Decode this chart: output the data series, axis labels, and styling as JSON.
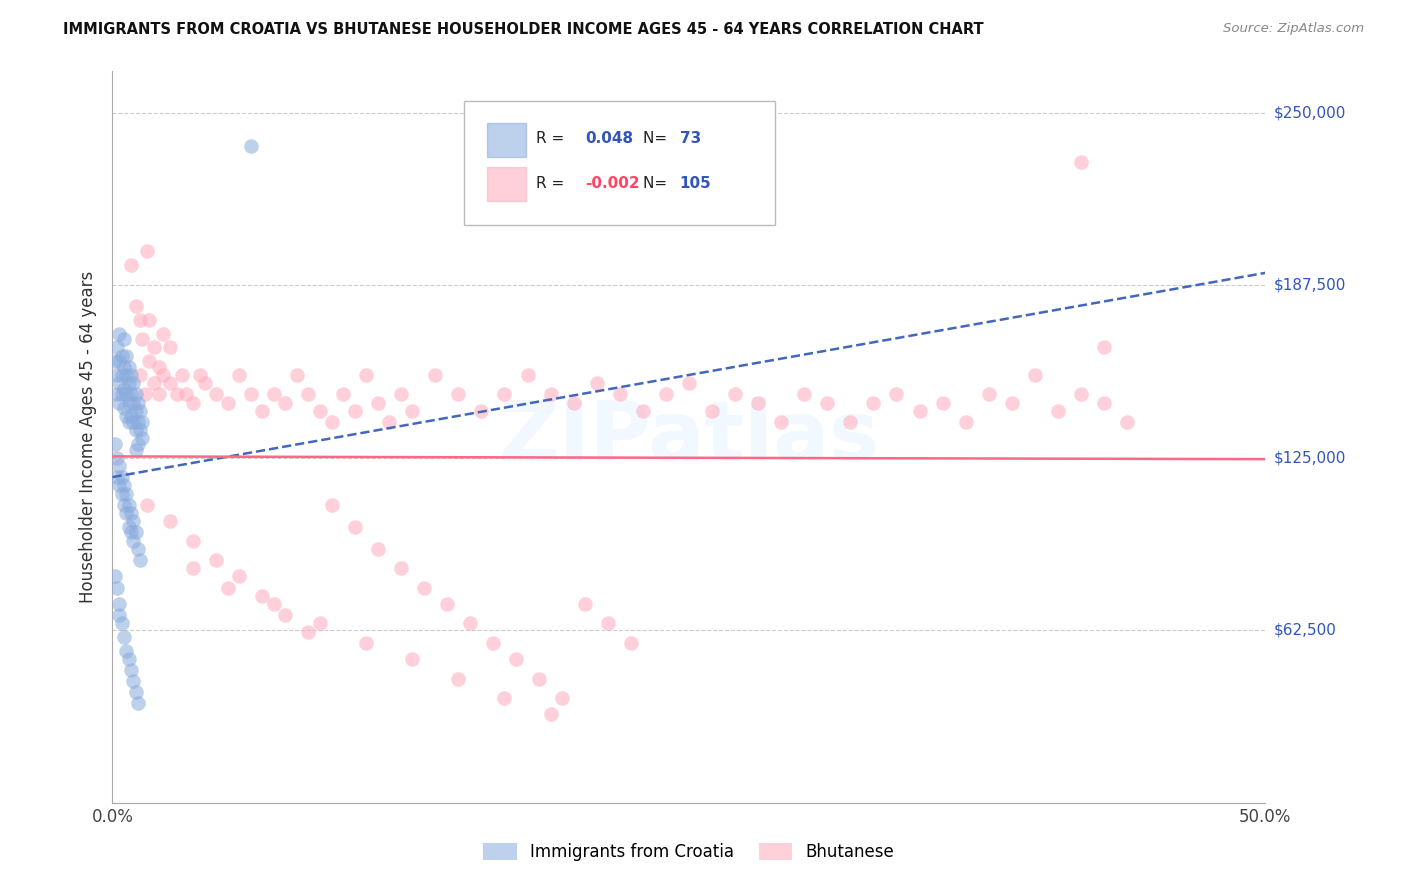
{
  "title": "IMMIGRANTS FROM CROATIA VS BHUTANESE HOUSEHOLDER INCOME AGES 45 - 64 YEARS CORRELATION CHART",
  "source": "Source: ZipAtlas.com",
  "ylabel": "Householder Income Ages 45 - 64 years",
  "y_ticks": [
    0,
    62500,
    125000,
    187500,
    250000
  ],
  "y_tick_labels": [
    "",
    "$62,500",
    "$125,000",
    "$187,500",
    "$250,000"
  ],
  "xlim": [
    0.0,
    0.5
  ],
  "ylim": [
    0,
    265000
  ],
  "croatia_R": "0.048",
  "croatia_N": "73",
  "bhutan_R": "-0.002",
  "bhutan_N": "105",
  "croatia_color": "#88aadd",
  "bhutan_color": "#ffaabb",
  "croatia_line_color": "#4466bb",
  "bhutan_line_color": "#ff6688",
  "croatia_trend": [
    0.0,
    0.5,
    118000,
    192000
  ],
  "bhutan_trend": [
    0.0,
    0.5,
    125500,
    124500
  ],
  "watermark": "ZIPatlas",
  "legend_entries": [
    "Immigrants from Croatia",
    "Bhutanese"
  ],
  "croatia_x": [
    0.001,
    0.002,
    0.002,
    0.002,
    0.003,
    0.003,
    0.003,
    0.003,
    0.004,
    0.004,
    0.004,
    0.005,
    0.005,
    0.005,
    0.005,
    0.006,
    0.006,
    0.006,
    0.006,
    0.007,
    0.007,
    0.007,
    0.007,
    0.008,
    0.008,
    0.008,
    0.009,
    0.009,
    0.009,
    0.01,
    0.01,
    0.01,
    0.01,
    0.011,
    0.011,
    0.011,
    0.012,
    0.012,
    0.013,
    0.013,
    0.001,
    0.002,
    0.002,
    0.003,
    0.003,
    0.004,
    0.004,
    0.005,
    0.005,
    0.006,
    0.006,
    0.007,
    0.007,
    0.008,
    0.008,
    0.009,
    0.009,
    0.01,
    0.011,
    0.012,
    0.001,
    0.002,
    0.003,
    0.003,
    0.004,
    0.005,
    0.006,
    0.007,
    0.008,
    0.009,
    0.01,
    0.011,
    0.06
  ],
  "croatia_y": [
    160000,
    165000,
    155000,
    148000,
    170000,
    160000,
    152000,
    145000,
    162000,
    155000,
    148000,
    168000,
    158000,
    150000,
    143000,
    162000,
    155000,
    148000,
    140000,
    158000,
    152000,
    145000,
    138000,
    155000,
    148000,
    140000,
    152000,
    145000,
    138000,
    148000,
    142000,
    135000,
    128000,
    145000,
    138000,
    130000,
    142000,
    135000,
    138000,
    132000,
    130000,
    125000,
    118000,
    122000,
    115000,
    118000,
    112000,
    115000,
    108000,
    112000,
    105000,
    108000,
    100000,
    105000,
    98000,
    102000,
    95000,
    98000,
    92000,
    88000,
    82000,
    78000,
    72000,
    68000,
    65000,
    60000,
    55000,
    52000,
    48000,
    44000,
    40000,
    36000,
    238000
  ],
  "bhutan_x": [
    0.008,
    0.01,
    0.012,
    0.013,
    0.015,
    0.016,
    0.018,
    0.02,
    0.022,
    0.025,
    0.012,
    0.014,
    0.016,
    0.018,
    0.02,
    0.022,
    0.025,
    0.028,
    0.03,
    0.032,
    0.035,
    0.038,
    0.04,
    0.045,
    0.05,
    0.055,
    0.06,
    0.065,
    0.07,
    0.075,
    0.08,
    0.085,
    0.09,
    0.095,
    0.1,
    0.105,
    0.11,
    0.115,
    0.12,
    0.125,
    0.13,
    0.14,
    0.15,
    0.16,
    0.17,
    0.18,
    0.19,
    0.2,
    0.21,
    0.22,
    0.23,
    0.24,
    0.25,
    0.26,
    0.27,
    0.28,
    0.29,
    0.3,
    0.31,
    0.32,
    0.33,
    0.34,
    0.35,
    0.36,
    0.37,
    0.38,
    0.39,
    0.4,
    0.41,
    0.42,
    0.43,
    0.44,
    0.015,
    0.025,
    0.035,
    0.045,
    0.055,
    0.065,
    0.075,
    0.085,
    0.095,
    0.105,
    0.115,
    0.125,
    0.135,
    0.145,
    0.155,
    0.165,
    0.175,
    0.185,
    0.195,
    0.205,
    0.215,
    0.225,
    0.035,
    0.05,
    0.07,
    0.09,
    0.11,
    0.13,
    0.15,
    0.17,
    0.19,
    0.42,
    0.43
  ],
  "bhutan_y": [
    195000,
    180000,
    175000,
    168000,
    200000,
    175000,
    165000,
    158000,
    170000,
    165000,
    155000,
    148000,
    160000,
    152000,
    148000,
    155000,
    152000,
    148000,
    155000,
    148000,
    145000,
    155000,
    152000,
    148000,
    145000,
    155000,
    148000,
    142000,
    148000,
    145000,
    155000,
    148000,
    142000,
    138000,
    148000,
    142000,
    155000,
    145000,
    138000,
    148000,
    142000,
    155000,
    148000,
    142000,
    148000,
    155000,
    148000,
    145000,
    152000,
    148000,
    142000,
    148000,
    152000,
    142000,
    148000,
    145000,
    138000,
    148000,
    145000,
    138000,
    145000,
    148000,
    142000,
    145000,
    138000,
    148000,
    145000,
    155000,
    142000,
    148000,
    145000,
    138000,
    108000,
    102000,
    95000,
    88000,
    82000,
    75000,
    68000,
    62000,
    108000,
    100000,
    92000,
    85000,
    78000,
    72000,
    65000,
    58000,
    52000,
    45000,
    38000,
    72000,
    65000,
    58000,
    85000,
    78000,
    72000,
    65000,
    58000,
    52000,
    45000,
    38000,
    32000,
    232000,
    165000
  ]
}
